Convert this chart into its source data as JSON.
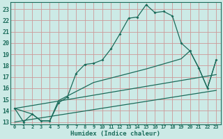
{
  "xlabel": "Humidex (Indice chaleur)",
  "bg_color": "#cceae6",
  "grid_color": "#cc9999",
  "line_color": "#1a6b5a",
  "xlim": [
    -0.5,
    23.5
  ],
  "ylim": [
    12.8,
    23.6
  ],
  "xticks": [
    0,
    1,
    2,
    3,
    4,
    5,
    6,
    7,
    8,
    9,
    10,
    11,
    12,
    13,
    14,
    15,
    16,
    17,
    18,
    19,
    20,
    21,
    22,
    23
  ],
  "yticks": [
    13,
    14,
    15,
    16,
    17,
    18,
    19,
    20,
    21,
    22,
    23
  ],
  "line1_x": [
    0,
    1,
    2,
    3,
    4,
    5,
    6,
    7,
    8,
    9,
    10,
    11,
    12,
    13,
    14,
    15,
    16,
    17,
    18,
    19,
    20,
    21,
    22,
    23
  ],
  "line1_y": [
    14.2,
    13.0,
    13.7,
    13.1,
    13.1,
    14.7,
    15.2,
    17.3,
    18.1,
    18.2,
    18.5,
    19.5,
    20.8,
    22.2,
    22.3,
    23.4,
    22.7,
    22.8,
    22.4,
    20.0,
    19.3,
    17.8,
    16.0,
    18.5
  ],
  "line2_x": [
    0,
    2,
    3,
    4,
    5,
    6,
    9,
    15,
    19,
    20,
    21,
    22,
    23
  ],
  "line2_y": [
    14.2,
    13.7,
    13.1,
    13.1,
    14.9,
    15.3,
    16.5,
    17.7,
    18.6,
    19.3,
    17.8,
    16.0,
    18.5
  ],
  "line3_x": [
    0,
    23
  ],
  "line3_y": [
    14.2,
    17.2
  ],
  "line4_x": [
    0,
    23
  ],
  "line4_y": [
    13.0,
    15.8
  ],
  "xlabel_fontsize": 6.5,
  "xtick_fontsize": 5.0,
  "ytick_fontsize": 6.0
}
